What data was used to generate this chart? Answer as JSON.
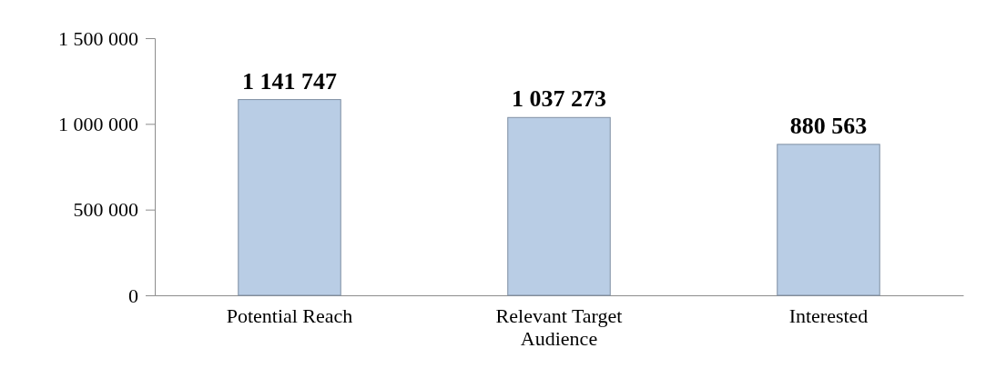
{
  "chart_data": {
    "type": "bar",
    "categories": [
      "Potential Reach",
      "Relevant Target Audience",
      "Interested"
    ],
    "values": [
      1141747,
      1037273,
      880563
    ],
    "value_labels": [
      "1 141 747",
      "1 037 273",
      "880 563"
    ],
    "color": "#b9cde5",
    "ylim": [
      0,
      1500000
    ],
    "yticks": [
      {
        "value": 0,
        "label": "0"
      },
      {
        "value": 500000,
        "label": "500 000"
      },
      {
        "value": 1000000,
        "label": "1 000 000"
      },
      {
        "value": 1500000,
        "label": "1 500 000"
      }
    ]
  }
}
